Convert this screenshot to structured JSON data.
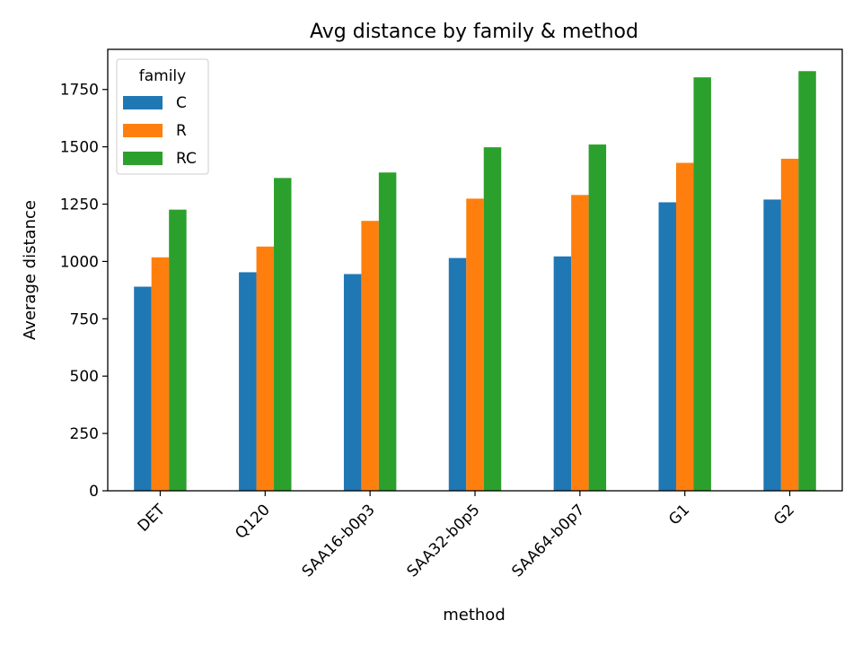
{
  "chart_data": {
    "type": "bar",
    "title": "Avg distance by family & method",
    "xlabel": "method",
    "ylabel": "Average distance",
    "categories": [
      "DET",
      "Q120",
      "SAA16-b0p3",
      "SAA32-b0p5",
      "SAA64-b0p7",
      "G1",
      "G2"
    ],
    "series": [
      {
        "name": "C",
        "color": "#1f77b4",
        "values": [
          890,
          953,
          945,
          1015,
          1022,
          1258,
          1270
        ]
      },
      {
        "name": "R",
        "color": "#ff7f0e",
        "values": [
          1018,
          1065,
          1177,
          1274,
          1290,
          1430,
          1448
        ]
      },
      {
        "name": "RC",
        "color": "#2ca02c",
        "values": [
          1226,
          1364,
          1388,
          1498,
          1510,
          1803,
          1830
        ]
      }
    ],
    "ylim": [
      0,
      1925
    ],
    "yticks": [
      0,
      250,
      500,
      750,
      1000,
      1250,
      1500,
      1750
    ],
    "legend": {
      "title": "family",
      "position": "top-left"
    },
    "grid": false
  }
}
